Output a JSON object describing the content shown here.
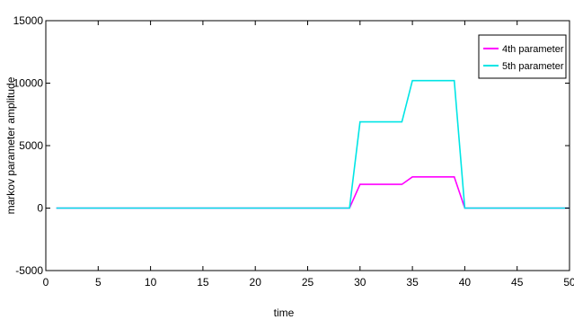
{
  "chart_data": {
    "type": "line",
    "title": "",
    "xlabel": "time",
    "ylabel": "markov  parameter amplitude",
    "xlim": [
      0,
      50
    ],
    "ylim": [
      -5000,
      15000
    ],
    "xticks": [
      0,
      5,
      10,
      15,
      20,
      25,
      30,
      35,
      40,
      45,
      50
    ],
    "yticks": [
      -5000,
      0,
      5000,
      10000,
      15000
    ],
    "grid": false,
    "legend_position": "top-right",
    "series": [
      {
        "name": "4th parameter",
        "color": "#ff00ff",
        "x": [
          1,
          29,
          30,
          34,
          35,
          39,
          40,
          50
        ],
        "y": [
          0,
          0,
          1900,
          1900,
          2500,
          2500,
          0,
          0
        ]
      },
      {
        "name": "5th parameter",
        "color": "#00e5e5",
        "x": [
          1,
          29,
          30,
          34,
          35,
          39,
          40,
          50
        ],
        "y": [
          0,
          0,
          6900,
          6900,
          10200,
          10200,
          0,
          0
        ]
      }
    ]
  }
}
